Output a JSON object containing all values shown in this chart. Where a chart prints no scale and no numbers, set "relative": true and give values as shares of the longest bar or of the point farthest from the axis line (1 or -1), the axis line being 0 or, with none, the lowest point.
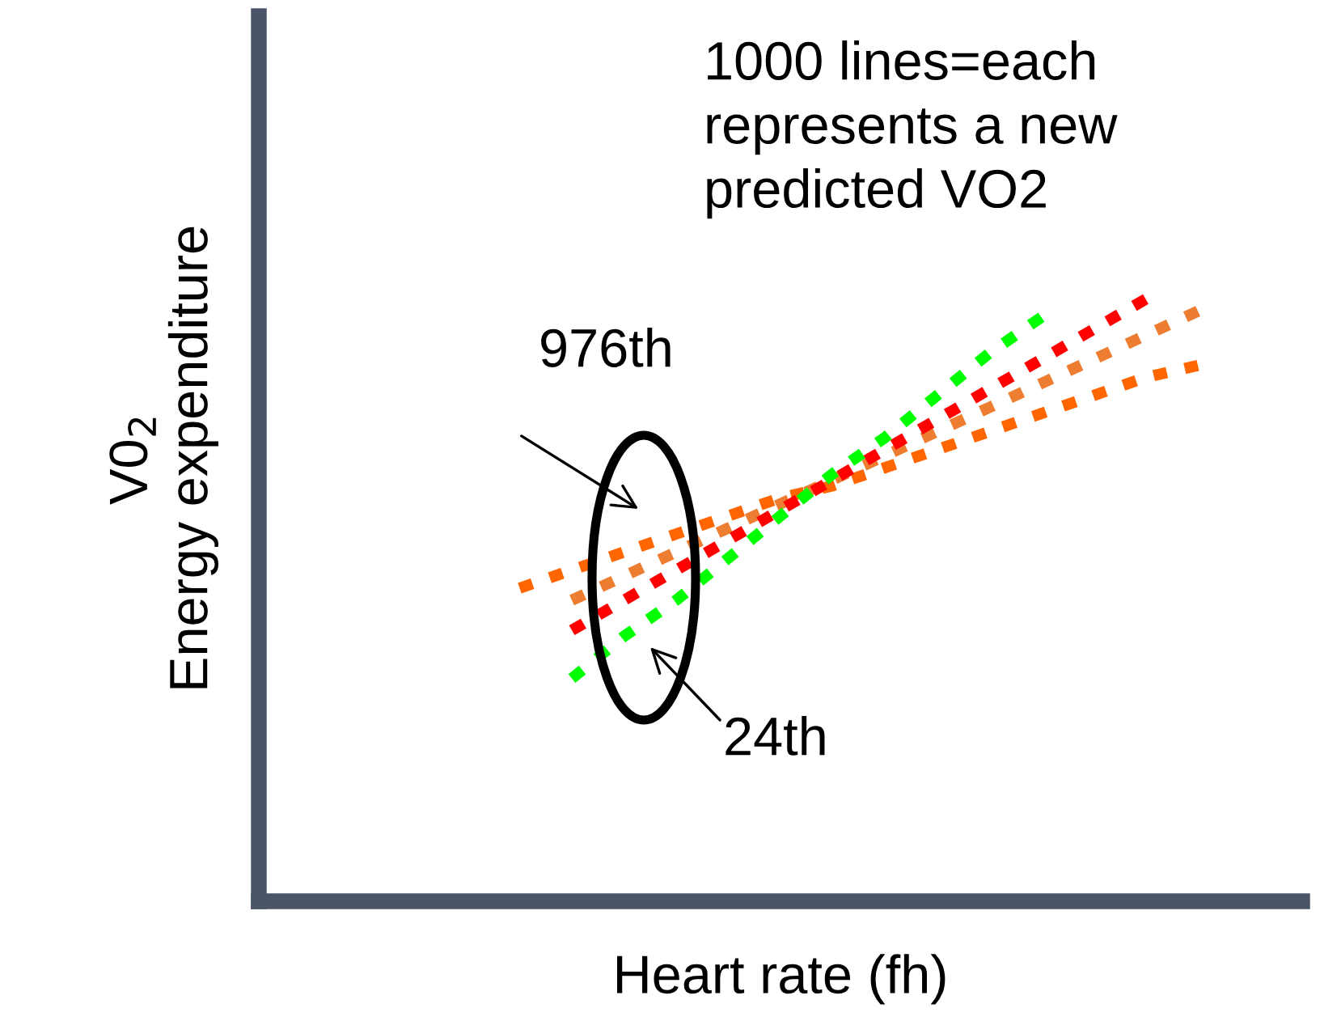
{
  "chart_data": {
    "type": "line",
    "relative": true,
    "xlabel": "Heart rate (fh)",
    "ylabel": "V0$_{2}$\nEnergy expenditure",
    "categories": [
      null,
      null,
      null,
      null,
      null,
      null,
      null,
      null,
      null,
      null,
      null,
      null,
      null,
      null,
      null,
      null,
      null,
      null,
      null,
      null,
      null
    ],
    "line_style": "dotted",
    "marker": "none",
    "grid": false,
    "legend": false,
    "series": [
      {
        "color": "#ff6600",
        "values": [
          null,
          null,
          null,
          null,
          null,
          0.52,
          0.55,
          0.58,
          0.61,
          0.64,
          0.67,
          0.69,
          0.72,
          0.75,
          0.78,
          0.81,
          0.84,
          0.87,
          0.89,
          null,
          null
        ]
      },
      {
        "color": "#ed7d31",
        "values": [
          null,
          null,
          null,
          null,
          null,
          null,
          0.5,
          0.54,
          0.58,
          0.62,
          0.66,
          0.7,
          0.74,
          0.78,
          0.82,
          0.86,
          0.9,
          0.94,
          0.98,
          null,
          null
        ]
      },
      {
        "color": "#ff0000",
        "values": [
          null,
          null,
          null,
          null,
          null,
          null,
          0.45,
          0.5,
          0.55,
          0.6,
          0.65,
          0.7,
          0.75,
          0.8,
          0.85,
          0.9,
          0.95,
          1.0,
          null,
          null,
          null
        ]
      },
      {
        "color": "#00ff00",
        "values": [
          null,
          null,
          null,
          null,
          null,
          null,
          0.37,
          0.44,
          0.5,
          0.57,
          0.64,
          0.71,
          0.77,
          0.84,
          0.91,
          0.97,
          null,
          null,
          null,
          null,
          null
        ]
      }
    ],
    "annotations": [
      "1000 lines=each\nrepresents a new\npredicted VO2",
      "976th",
      "24th"
    ]
  }
}
